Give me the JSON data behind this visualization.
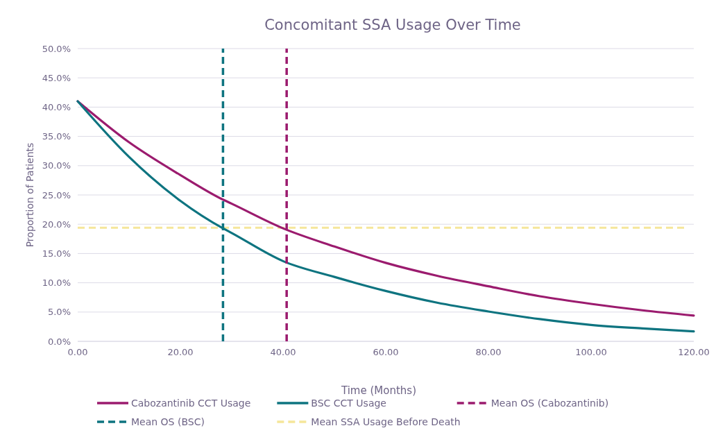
{
  "chart_data": {
    "type": "line",
    "title": "Concomitant SSA Usage Over Time",
    "xlabel": "Time (Months)",
    "ylabel": "Proportion of Patients",
    "xlim": [
      0,
      120
    ],
    "ylim": [
      0,
      50
    ],
    "xticks": [
      {
        "value": 0,
        "label": "0.00"
      },
      {
        "value": 20,
        "label": "20.00"
      },
      {
        "value": 40,
        "label": "40.00"
      },
      {
        "value": 60,
        "label": "60.00"
      },
      {
        "value": 80,
        "label": "80.00"
      },
      {
        "value": 100,
        "label": "100.00"
      },
      {
        "value": 120,
        "label": "120.00"
      }
    ],
    "yticks": [
      {
        "value": 0,
        "label": "0.0%"
      },
      {
        "value": 5,
        "label": "5.0%"
      },
      {
        "value": 10,
        "label": "10.0%"
      },
      {
        "value": 15,
        "label": "15.0%"
      },
      {
        "value": 20,
        "label": "20.0%"
      },
      {
        "value": 25,
        "label": "25.0%"
      },
      {
        "value": 30,
        "label": "30.0%"
      },
      {
        "value": 35,
        "label": "35.0%"
      },
      {
        "value": 40,
        "label": "40.0%"
      },
      {
        "value": 45,
        "label": "45.0%"
      },
      {
        "value": 50,
        "label": "50.0%"
      }
    ],
    "grid": "y",
    "legend": "bottom",
    "series": [
      {
        "name": "Cabozantinib CCT Usage",
        "color": "#9b1b6e",
        "x": [
          0,
          10,
          20,
          28.3,
          30,
          40,
          50,
          60,
          70,
          80,
          90,
          100,
          110,
          120
        ],
        "values": [
          41,
          34,
          28.4,
          24.2,
          23.5,
          19.3,
          16.2,
          13.4,
          11.2,
          9.4,
          7.7,
          6.4,
          5.3,
          4.4
        ]
      },
      {
        "name": "BSC CCT Usage",
        "color": "#0e7480",
        "x": [
          0,
          10,
          20,
          28.3,
          30,
          40,
          50,
          60,
          70,
          80,
          90,
          100,
          110,
          120
        ],
        "values": [
          41,
          31.5,
          24.0,
          19.3,
          18.5,
          13.7,
          11.0,
          8.6,
          6.6,
          5.1,
          3.8,
          2.8,
          2.2,
          1.7
        ]
      }
    ],
    "ref_lines": [
      {
        "axis": "x",
        "value": 40.7,
        "label": "Mean OS (Cabozantinib)",
        "color": "#9b1b6e",
        "line_style": "dashed"
      },
      {
        "axis": "x",
        "value": 28.3,
        "label": "Mean OS (BSC)",
        "color": "#0e7480",
        "line_style": "dashed"
      },
      {
        "axis": "y",
        "value": 19.4,
        "label": "Mean SSA Usage Before Death",
        "color": "#f5e69a",
        "line_style": "dashed"
      }
    ]
  }
}
